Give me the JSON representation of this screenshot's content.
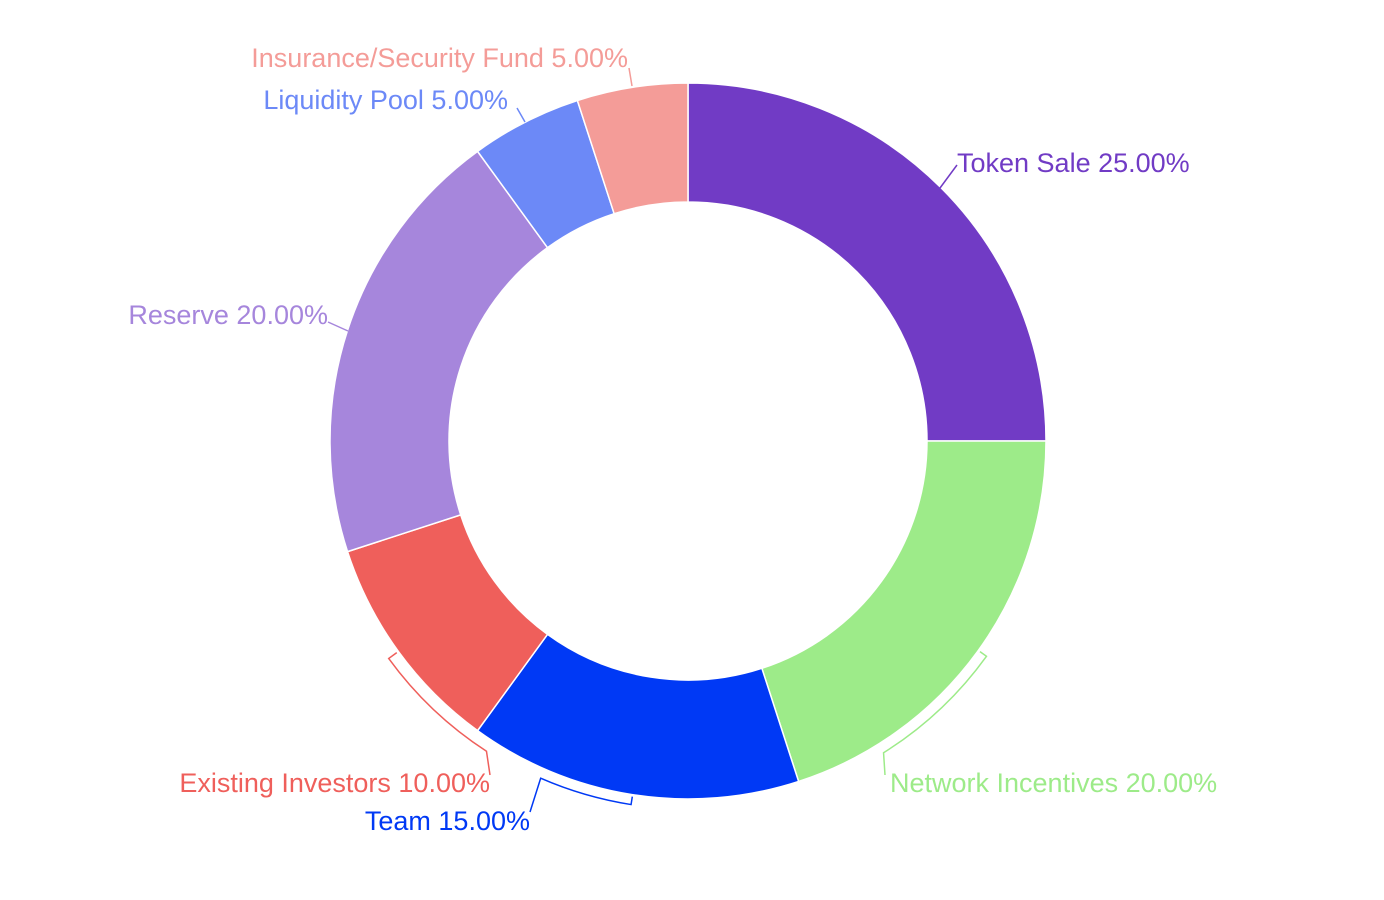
{
  "chart_data": {
    "type": "pie",
    "donut": true,
    "title": "",
    "legend": "none",
    "slices": [
      {
        "label": "Token Sale",
        "value": 25.0,
        "display": "Token Sale 25.00%",
        "color": "#713bc5"
      },
      {
        "label": "Network Incentives",
        "value": 20.0,
        "display": "Network Incentives 20.00%",
        "color": "#9deb89"
      },
      {
        "label": "Team",
        "value": 15.0,
        "display": "Team 15.00%",
        "color": "#0039f5"
      },
      {
        "label": "Existing Investors",
        "value": 10.0,
        "display": "Existing Investors 10.00%",
        "color": "#ef5f5b"
      },
      {
        "label": "Reserve",
        "value": 20.0,
        "display": "Reserve 20.00%",
        "color": "#a686dc"
      },
      {
        "label": "Liquidity Pool",
        "value": 5.0,
        "display": "Liquidity Pool 5.00%",
        "color": "#6c89f7"
      },
      {
        "label": "Insurance/Security Fund",
        "value": 5.0,
        "display": "Insurance/Security Fund 5.00%",
        "color": "#f49c98"
      }
    ]
  }
}
